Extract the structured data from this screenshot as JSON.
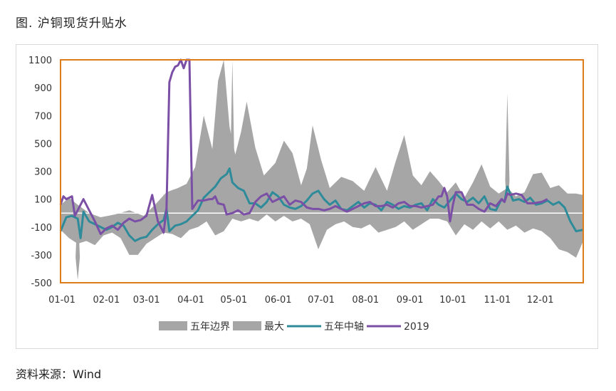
{
  "figure_title": "图.  沪铜现货升贴水",
  "source": "资料来源：Wind",
  "colors": {
    "band": "#a6a6a6",
    "max": "#a6a6a6",
    "median": "#2e8b9a",
    "y2019": "#7b4fa6",
    "plot_border": "#e07b1a",
    "zero_line": "#ffffff"
  },
  "chart_data": {
    "type": "area",
    "ylim": [
      -500,
      1100
    ],
    "yticks": [
      1100,
      900,
      700,
      500,
      300,
      100,
      -100,
      -300,
      -500
    ],
    "xlim": [
      0,
      365
    ],
    "xticks": [
      {
        "label": "01-01",
        "day": 0
      },
      {
        "label": "02-01",
        "day": 31
      },
      {
        "label": "03-01",
        "day": 59
      },
      {
        "label": "04-01",
        "day": 90
      },
      {
        "label": "05-01",
        "day": 120
      },
      {
        "label": "06-01",
        "day": 151
      },
      {
        "label": "07-01",
        "day": 181
      },
      {
        "label": "08-01",
        "day": 212
      },
      {
        "label": "09-01",
        "day": 243
      },
      {
        "label": "10-01",
        "day": 273
      },
      {
        "label": "11-01",
        "day": 304
      },
      {
        "label": "12-01",
        "day": 334
      }
    ],
    "legend": [
      "五年边界",
      "最大",
      "五年中轴",
      "2019"
    ],
    "legend_position": "bottom",
    "series": {
      "band_upper": {
        "x": [
          0,
          6,
          12,
          20,
          28,
          38,
          48,
          58,
          66,
          74,
          82,
          88,
          94,
          100,
          106,
          110,
          114,
          118,
          122,
          126,
          130,
          136,
          142,
          150,
          156,
          162,
          168,
          172,
          176,
          182,
          188,
          196,
          204,
          212,
          220,
          228,
          234,
          240,
          246,
          252,
          258,
          264,
          270,
          276,
          282,
          288,
          294,
          300,
          306,
          312,
          318,
          324,
          330,
          336,
          342,
          348,
          354,
          360,
          365
        ],
        "y": [
          60,
          110,
          60,
          0,
          -30,
          -10,
          20,
          -20,
          60,
          150,
          180,
          210,
          330,
          700,
          460,
          950,
          1100,
          620,
          420,
          580,
          800,
          470,
          270,
          360,
          520,
          430,
          200,
          320,
          630,
          380,
          180,
          260,
          230,
          160,
          330,
          160,
          370,
          560,
          270,
          200,
          300,
          230,
          150,
          220,
          110,
          220,
          350,
          190,
          140,
          180,
          120,
          150,
          280,
          290,
          180,
          200,
          140,
          140,
          130
        ]
      },
      "band_lower": {
        "x": [
          0,
          6,
          12,
          18,
          24,
          30,
          36,
          42,
          48,
          54,
          60,
          66,
          72,
          78,
          84,
          90,
          96,
          102,
          108,
          114,
          120,
          126,
          132,
          138,
          144,
          150,
          156,
          162,
          168,
          174,
          180,
          186,
          192,
          198,
          204,
          210,
          216,
          222,
          228,
          234,
          240,
          246,
          252,
          258,
          264,
          270,
          276,
          282,
          288,
          294,
          300,
          306,
          312,
          318,
          324,
          330,
          336,
          342,
          348,
          354,
          360,
          365
        ],
        "y": [
          -120,
          -180,
          -220,
          -200,
          -230,
          -160,
          -140,
          -180,
          -300,
          -300,
          -220,
          -180,
          -140,
          -150,
          -180,
          -120,
          -100,
          -60,
          -160,
          -130,
          -40,
          -60,
          -40,
          -60,
          -10,
          -60,
          -20,
          -60,
          -40,
          -80,
          -260,
          -120,
          -80,
          -60,
          -100,
          -110,
          -80,
          -140,
          -120,
          -100,
          -60,
          -120,
          -80,
          -40,
          -40,
          -60,
          -160,
          -80,
          -120,
          -60,
          -110,
          -60,
          -120,
          -90,
          -140,
          -110,
          -130,
          -180,
          -260,
          -280,
          -320,
          -200
        ]
      },
      "max_spikes": [
        {
          "x": 12,
          "low": -480,
          "high": 60
        },
        {
          "x": 72,
          "low": -160,
          "high": 140
        },
        {
          "x": 120,
          "low": -40,
          "high": 1100
        },
        {
          "x": 312,
          "low": -30,
          "high": 860
        }
      ],
      "median": {
        "x": [
          0,
          4,
          8,
          12,
          14,
          16,
          20,
          24,
          28,
          32,
          36,
          40,
          44,
          48,
          52,
          56,
          60,
          64,
          68,
          72,
          74,
          76,
          80,
          84,
          88,
          92,
          96,
          100,
          104,
          108,
          112,
          116,
          118,
          120,
          124,
          128,
          132,
          136,
          140,
          144,
          148,
          152,
          156,
          160,
          164,
          168,
          172,
          176,
          180,
          184,
          188,
          192,
          196,
          200,
          204,
          208,
          212,
          216,
          220,
          224,
          228,
          232,
          236,
          240,
          244,
          248,
          252,
          256,
          260,
          264,
          268,
          272,
          276,
          280,
          284,
          288,
          292,
          296,
          300,
          304,
          308,
          310,
          312,
          316,
          320,
          324,
          328,
          332,
          336,
          340,
          344,
          348,
          352,
          356,
          360,
          365
        ],
        "y": [
          -130,
          -30,
          -20,
          -40,
          -180,
          10,
          -60,
          -80,
          -100,
          -120,
          -100,
          -70,
          -90,
          -160,
          -200,
          -180,
          -170,
          -120,
          -80,
          -50,
          30,
          -130,
          -90,
          -80,
          -60,
          -20,
          20,
          110,
          150,
          190,
          250,
          280,
          320,
          220,
          180,
          160,
          70,
          70,
          40,
          80,
          150,
          120,
          60,
          40,
          30,
          50,
          90,
          140,
          160,
          100,
          60,
          90,
          30,
          20,
          50,
          80,
          40,
          70,
          60,
          20,
          80,
          60,
          30,
          50,
          40,
          60,
          70,
          20,
          100,
          60,
          40,
          90,
          140,
          100,
          80,
          110,
          70,
          120,
          30,
          20,
          100,
          80,
          190,
          90,
          100,
          80,
          110,
          60,
          70,
          90,
          60,
          80,
          40,
          -60,
          -130,
          -120
        ]
      },
      "y2019": {
        "x": [
          0,
          2,
          4,
          8,
          10,
          14,
          16,
          20,
          24,
          28,
          32,
          36,
          40,
          44,
          48,
          52,
          56,
          60,
          64,
          68,
          70,
          72,
          74,
          76,
          78,
          80,
          82,
          84,
          86,
          88,
          90,
          92,
          94,
          96,
          100,
          104,
          106,
          108,
          110,
          114,
          116,
          120,
          124,
          128,
          132,
          136,
          140,
          144,
          148,
          152,
          156,
          160,
          164,
          168,
          172,
          176,
          180,
          184,
          188,
          192,
          196,
          200,
          204,
          208,
          212,
          216,
          220,
          224,
          228,
          232,
          236,
          240,
          244,
          248,
          252,
          256,
          260,
          264,
          266,
          268,
          270,
          272,
          274,
          276,
          280,
          284,
          288,
          292,
          296,
          300,
          304,
          308,
          310,
          312,
          314,
          318,
          322,
          326,
          330,
          336,
          340
        ],
        "y": [
          60,
          120,
          100,
          120,
          -20,
          60,
          100,
          20,
          -60,
          -150,
          -110,
          -90,
          -120,
          -70,
          -40,
          -60,
          -50,
          -20,
          130,
          -60,
          -100,
          -140,
          30,
          940,
          1010,
          1050,
          1060,
          1100,
          1040,
          1100,
          1100,
          30,
          60,
          90,
          90,
          100,
          100,
          120,
          70,
          60,
          -10,
          0,
          20,
          -10,
          0,
          80,
          120,
          140,
          80,
          100,
          120,
          60,
          90,
          80,
          40,
          30,
          30,
          20,
          30,
          50,
          30,
          10,
          30,
          50,
          70,
          80,
          50,
          50,
          60,
          40,
          70,
          80,
          50,
          50,
          40,
          50,
          60,
          120,
          120,
          180,
          120,
          -60,
          60,
          150,
          150,
          60,
          60,
          30,
          10,
          70,
          50,
          100,
          80,
          140,
          130,
          140,
          130,
          70,
          70,
          80,
          100
        ]
      }
    }
  }
}
